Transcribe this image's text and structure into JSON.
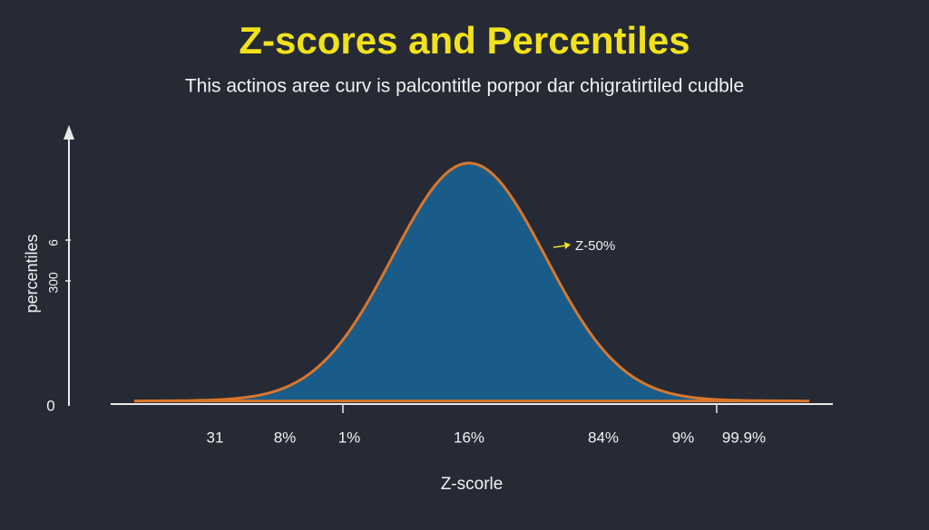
{
  "header": {
    "title": "Z-scores and Percentiles",
    "subtitle": "This actinos aree curv is palcontitle porpor dar chigratirtiled cudble"
  },
  "y_axis": {
    "title": "percentiles",
    "labels": [
      "6",
      "300",
      "0"
    ]
  },
  "annotation": "Z-50%",
  "x_axis": {
    "title": "Z-scorle",
    "labels": [
      "31",
      "8%",
      "1%",
      "16%",
      "84%",
      "9%",
      "99.9%"
    ]
  }
}
